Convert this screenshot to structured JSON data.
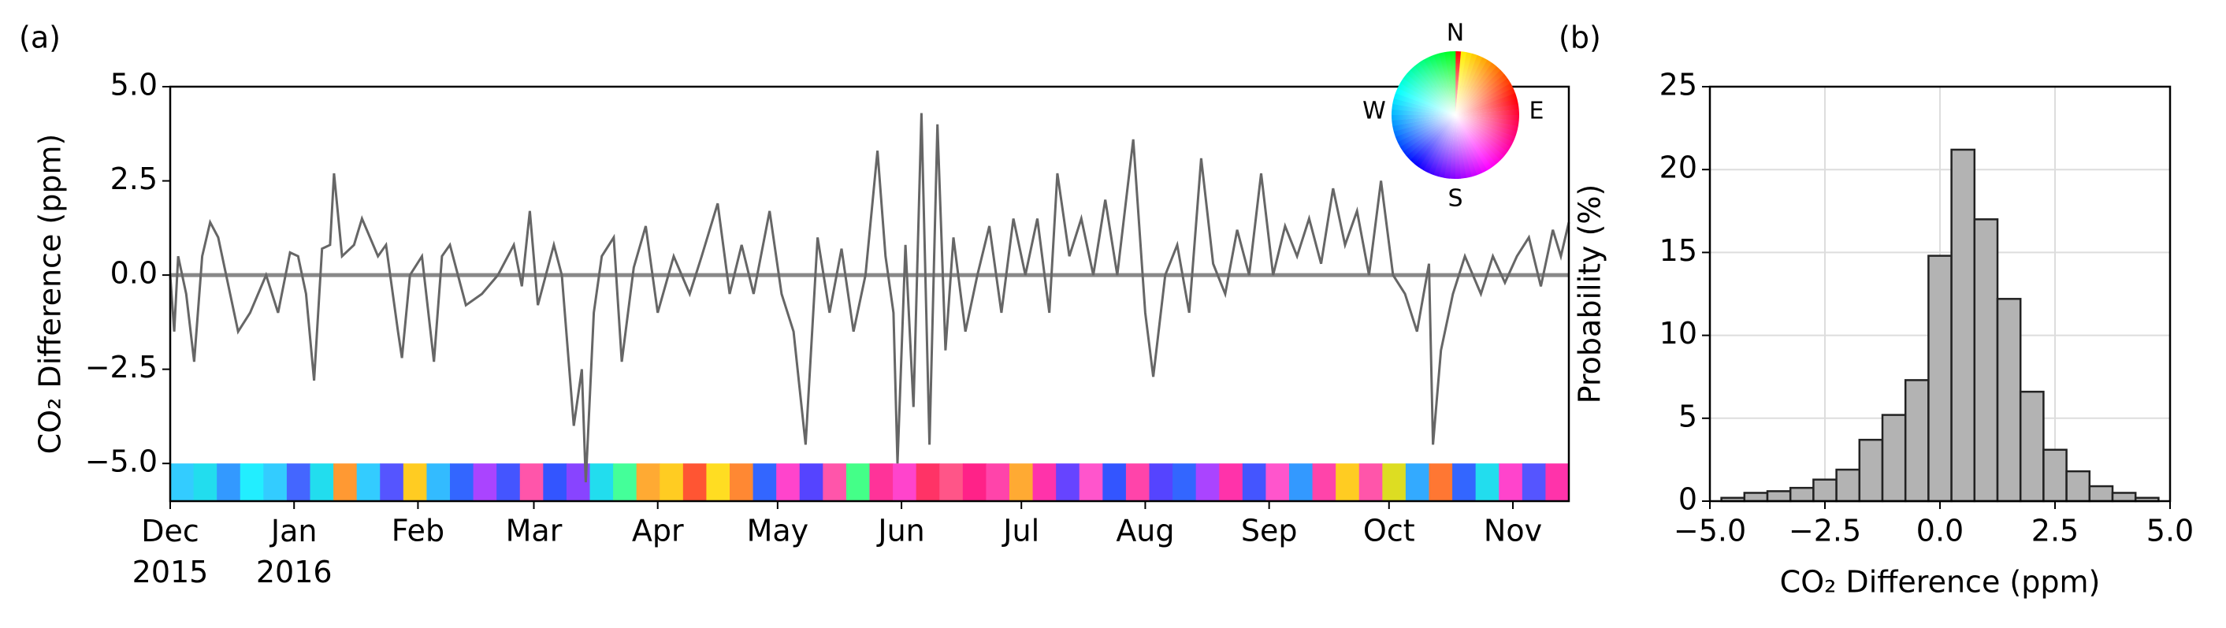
{
  "chart_data": [
    {
      "type": "line",
      "panel_label": "(a)",
      "ylabel": "CO₂ Difference (ppm)",
      "xlim": [
        0,
        350
      ],
      "ylim": [
        -6,
        5
      ],
      "xticks": [
        {
          "value": 0,
          "label": "Dec\n2015"
        },
        {
          "value": 31,
          "label": "Jan\n2016"
        },
        {
          "value": 62,
          "label": "Feb"
        },
        {
          "value": 91,
          "label": "Mar"
        },
        {
          "value": 122,
          "label": "Apr"
        },
        {
          "value": 152,
          "label": "May"
        },
        {
          "value": 183,
          "label": "Jun"
        },
        {
          "value": 213,
          "label": "Jul"
        },
        {
          "value": 244,
          "label": "Aug"
        },
        {
          "value": 275,
          "label": "Sep"
        },
        {
          "value": 305,
          "label": "Oct"
        },
        {
          "value": 336,
          "label": "Nov"
        }
      ],
      "yticks": [
        {
          "value": -5,
          "label": "−5.0"
        },
        {
          "value": -2.5,
          "label": "−2.5"
        },
        {
          "value": 0,
          "label": "0.0"
        },
        {
          "value": 2.5,
          "label": "2.5"
        },
        {
          "value": 5,
          "label": "5.0"
        }
      ],
      "hline": 0,
      "grid": false,
      "series": [
        {
          "color": "#666666",
          "x": [
            0,
            1,
            2,
            4,
            6,
            8,
            10,
            12,
            14,
            17,
            20,
            24,
            27,
            30,
            32,
            34,
            36,
            38,
            40,
            41,
            43,
            46,
            48,
            52,
            54,
            57,
            58,
            60,
            63,
            66,
            68,
            70,
            74,
            78,
            82,
            86,
            88,
            90,
            92,
            96,
            98,
            101,
            103,
            104,
            106,
            108,
            111,
            113,
            116,
            119,
            122,
            126,
            130,
            133,
            137,
            140,
            143,
            146,
            150,
            153,
            156,
            159,
            162,
            165,
            168,
            171,
            174,
            177,
            179,
            181,
            182,
            184,
            186,
            188,
            190,
            192,
            194,
            196,
            199,
            202,
            205,
            208,
            211,
            214,
            217,
            220,
            222,
            225,
            228,
            231,
            234,
            237,
            241,
            244,
            246,
            249,
            252,
            255,
            258,
            261,
            264,
            267,
            270,
            273,
            276,
            279,
            282,
            285,
            288,
            291,
            294,
            297,
            300,
            303,
            306,
            309,
            312,
            315,
            316,
            318,
            321,
            324,
            328,
            331,
            334,
            337,
            340,
            343,
            346,
            348,
            350
          ],
          "values": [
            0,
            -1.5,
            0.5,
            -0.5,
            -2.3,
            0.5,
            1.4,
            1,
            0,
            -1.5,
            -1,
            0,
            -1,
            0.6,
            0.5,
            -0.5,
            -2.8,
            0.7,
            0.8,
            2.7,
            0.5,
            0.8,
            1.5,
            0.5,
            0.8,
            -1.5,
            -2.2,
            0,
            0.5,
            -2.3,
            0.5,
            0.8,
            -0.8,
            -0.5,
            0,
            0.8,
            -0.3,
            1.7,
            -0.8,
            0.8,
            0,
            -4,
            -2.5,
            -5.5,
            -1,
            0.5,
            1,
            -2.3,
            0.2,
            1.3,
            -1,
            0.5,
            -0.5,
            0.5,
            1.9,
            -0.5,
            0.8,
            -0.5,
            1.7,
            -0.5,
            -1.5,
            -4.5,
            1,
            -1,
            0.7,
            -1.5,
            0,
            3.3,
            0.5,
            -1,
            -5,
            0.8,
            -3.5,
            4.3,
            -4.5,
            4,
            -2,
            1,
            -1.5,
            0,
            1.3,
            -1,
            1.5,
            0,
            1.5,
            -1,
            2.7,
            0.5,
            1.5,
            0,
            2,
            0,
            3.6,
            -1,
            -2.7,
            0,
            0.8,
            -1,
            3.1,
            0.3,
            -0.5,
            1.2,
            0,
            2.7,
            0,
            1.3,
            0.5,
            1.5,
            0.3,
            2.3,
            0.8,
            1.7,
            0,
            2.5,
            0,
            -0.5,
            -1.5,
            0.3,
            -4.5,
            -2,
            -0.5,
            0.5,
            -0.5,
            0.5,
            -0.2,
            0.5,
            1,
            -0.3,
            1.2,
            0.5,
            1.4
          ]
        }
      ],
      "strip": {
        "ylim": [
          -6,
          -5
        ],
        "colors": [
          "#33ccff",
          "#22ddee",
          "#3399ff",
          "#22eeff",
          "#33ccff",
          "#4466ff",
          "#22ddee",
          "#ff9933",
          "#33ccff",
          "#5555ff",
          "#ffcc22",
          "#33bbff",
          "#3366ff",
          "#aa44ff",
          "#4455ff",
          "#ff55aa",
          "#3355ff",
          "#8844ff",
          "#22ddee",
          "#44ff99",
          "#ffaa33",
          "#ffcc22",
          "#ff5533",
          "#ffdd22",
          "#ff8833",
          "#3366ff",
          "#ff44cc",
          "#5544ff",
          "#ff55aa",
          "#44ff88",
          "#ff3399",
          "#ff44cc",
          "#ff3366",
          "#ff5588",
          "#ff2288",
          "#ff44aa",
          "#ffaa33",
          "#ff33aa",
          "#6644ff",
          "#ff55cc",
          "#3355ff",
          "#ff44aa",
          "#5544ff",
          "#3366ff",
          "#aa44ff",
          "#ff33aa",
          "#4455ff",
          "#ff55cc",
          "#3399ff",
          "#ff44aa",
          "#ffcc22",
          "#ff55aa",
          "#dddd22",
          "#33aaff",
          "#ff7733",
          "#3366ff",
          "#22ddee",
          "#ff44cc",
          "#5555ff",
          "#ff33aa"
        ]
      },
      "compass": {
        "labels": [
          "N",
          "E",
          "S",
          "W"
        ]
      }
    },
    {
      "type": "histogram",
      "panel_label": "(b)",
      "xlabel": "CO₂ Difference (ppm)",
      "ylabel": "Probability (%)",
      "xlim": [
        -5,
        5
      ],
      "ylim": [
        0,
        25
      ],
      "grid": true,
      "color": "#b3b3b3",
      "xticks": [
        {
          "value": -5,
          "label": "−5.0"
        },
        {
          "value": -2.5,
          "label": "−2.5"
        },
        {
          "value": 0,
          "label": "0.0"
        },
        {
          "value": 2.5,
          "label": "2.5"
        },
        {
          "value": 5,
          "label": "5.0"
        }
      ],
      "yticks": [
        0,
        5,
        10,
        15,
        20,
        25
      ],
      "bins": [
        -4.75,
        -4.25,
        -3.75,
        -3.25,
        -2.75,
        -2.25,
        -1.75,
        -1.25,
        -0.75,
        -0.25,
        0.25,
        0.75,
        1.25,
        1.75,
        2.25,
        2.75,
        3.25,
        3.75,
        4.25,
        4.75
      ],
      "values": [
        0.2,
        0.5,
        0.6,
        0.8,
        1.3,
        1.9,
        3.7,
        5.2,
        7.3,
        14.8,
        21.2,
        17,
        12.2,
        6.6,
        3.1,
        1.8,
        0.9,
        0.5,
        0.2
      ]
    }
  ]
}
